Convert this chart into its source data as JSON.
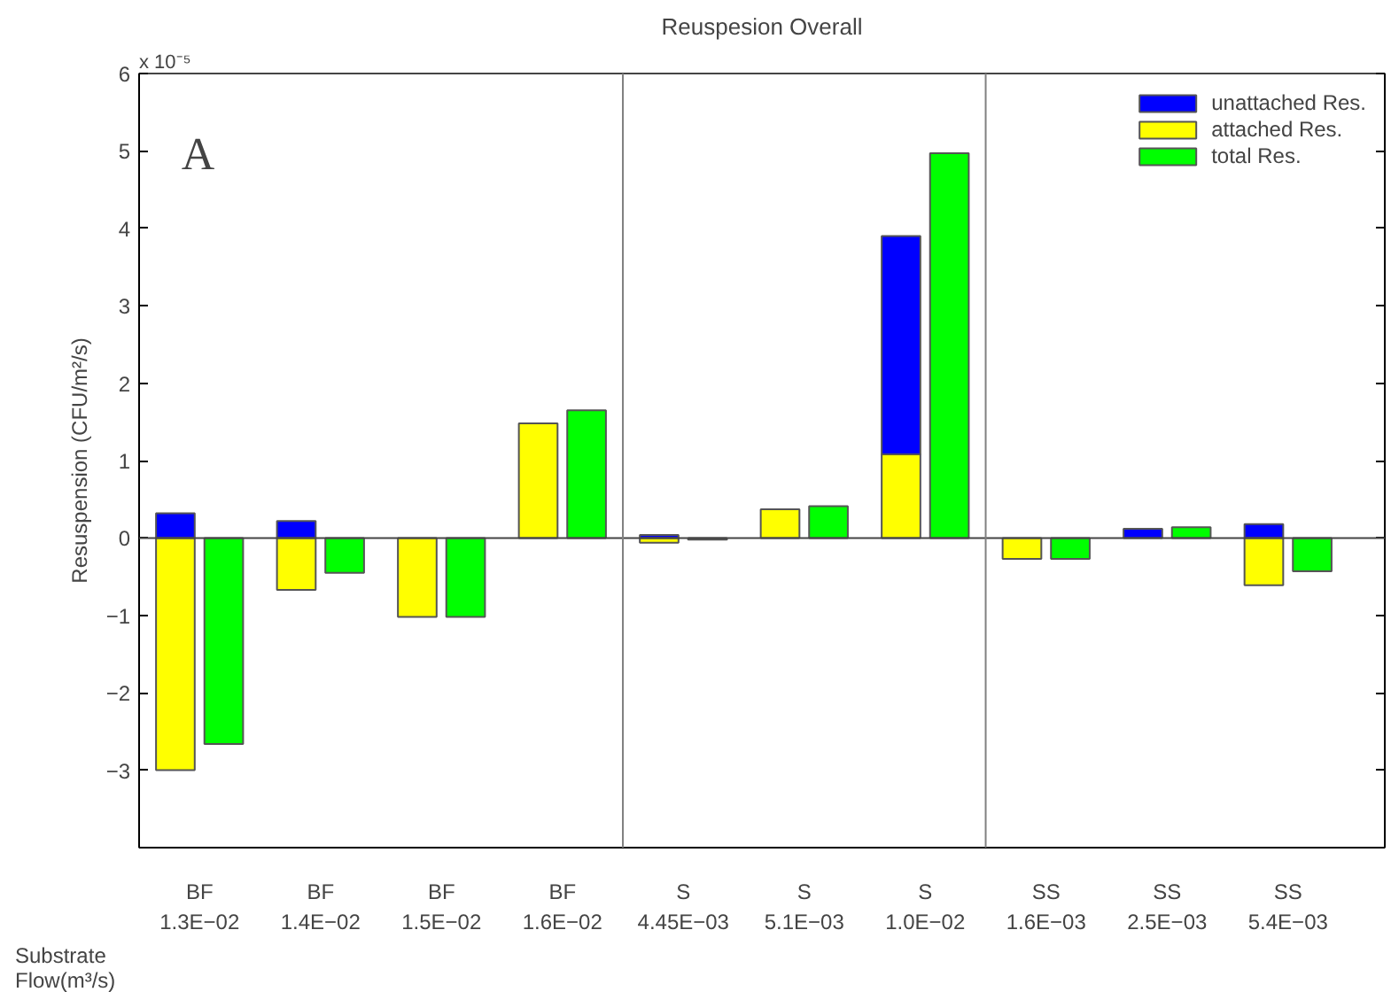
{
  "chart_data": {
    "type": "bar",
    "title": "Reuspesion Overall",
    "xlabel": "Substrate\nFlow(m³/s)",
    "ylabel": "Resuspension (CFU/m²/s)",
    "annotations": [
      "x 10⁻⁵",
      "A"
    ],
    "categories": [
      "BF\n1.3E−02",
      "BF\n1.4E−02",
      "BF\n1.5E−02",
      "BF\n1.6E−02",
      "S\n4.45E−03",
      "S\n5.1E−03",
      "S\n1.0E−02",
      "SS\n1.6E−03",
      "SS\n2.5E−03",
      "SS\n5.4E−03"
    ],
    "series": [
      {
        "name": "unattached Res.",
        "color": "#0000ff",
        "values": [
          0.32,
          0.22,
          null,
          null,
          0.04,
          null,
          2.82,
          null,
          0.12,
          0.18
        ],
        "base": [
          0,
          0,
          null,
          null,
          0,
          null,
          1.08,
          null,
          0,
          0
        ]
      },
      {
        "name": "attached Res.",
        "color": "#ffff00",
        "values": [
          -3.0,
          -0.67,
          -1.02,
          1.48,
          -0.06,
          0.37,
          1.08,
          -0.27,
          null,
          -0.61
        ]
      },
      {
        "name": "total Res.",
        "color": "#00ff00",
        "values": [
          -2.66,
          -0.45,
          -1.02,
          1.65,
          -0.02,
          0.41,
          4.97,
          -0.27,
          0.14,
          -0.43
        ]
      }
    ],
    "ylim": [
      -4,
      6
    ],
    "yticks": [
      -3,
      -2,
      -1,
      0,
      1,
      2,
      3,
      4,
      5,
      6
    ],
    "grid": false,
    "legend": "top right"
  }
}
